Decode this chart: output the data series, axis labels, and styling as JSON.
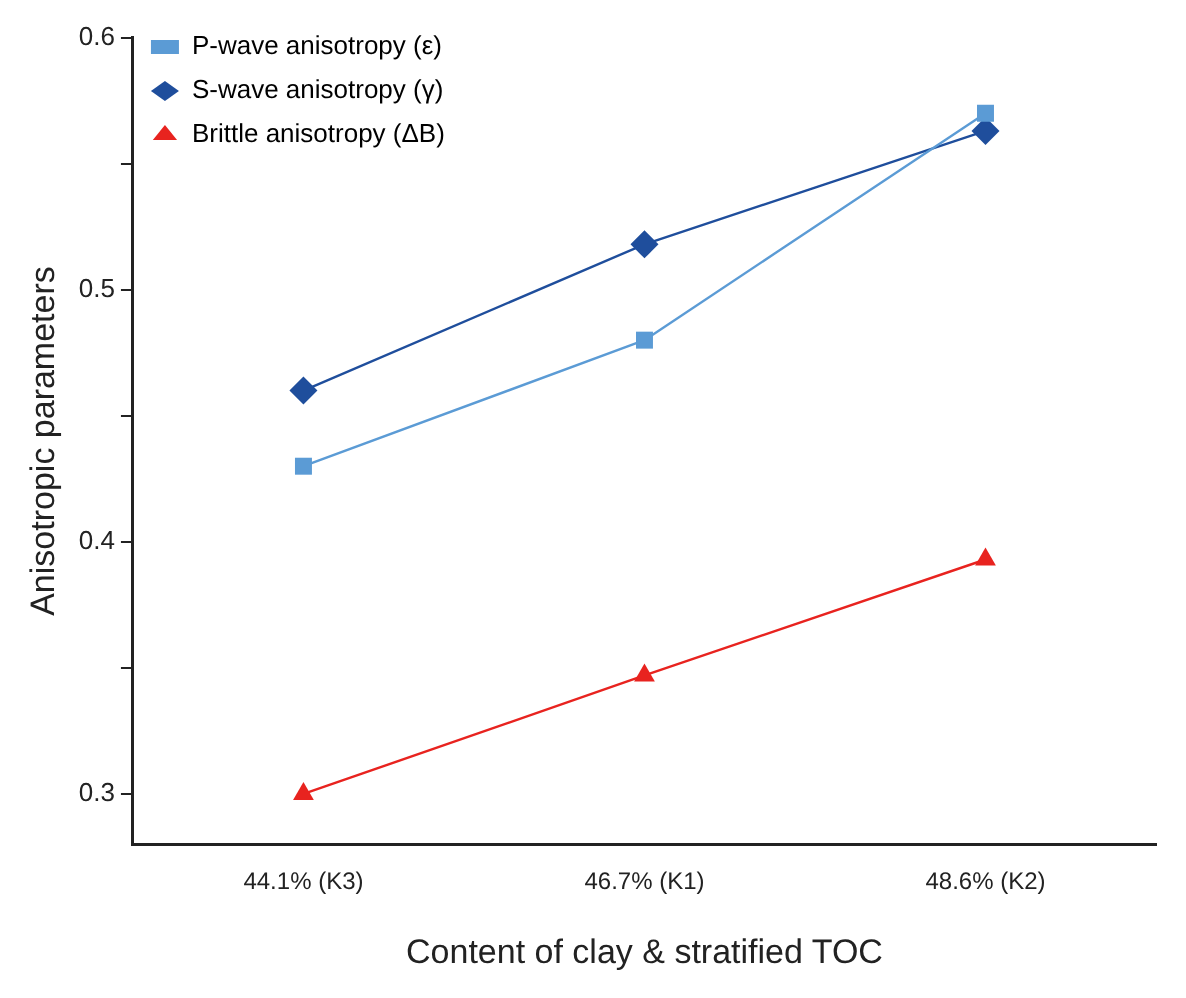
{
  "chart_data": {
    "type": "line",
    "xlabel": "Content of clay & stratified TOC",
    "ylabel": "Anisotropic parameters",
    "categories": [
      "44.1% (K3)",
      "46.7% (K1)",
      "48.6% (K2)"
    ],
    "series": [
      {
        "name": "P-wave anisotropy (ε)",
        "color": "#5b9bd5",
        "marker": "square",
        "values": [
          0.43,
          0.48,
          0.57
        ]
      },
      {
        "name": "S-wave anisotropy (γ)",
        "color": "#1f4e9c",
        "marker": "diamond",
        "values": [
          0.46,
          0.518,
          0.563
        ]
      },
      {
        "name": "Brittle anisotropy (ΔB)",
        "color": "#e8231f",
        "marker": "triangle",
        "values": [
          0.3,
          0.347,
          0.393
        ]
      }
    ],
    "ylim": [
      0.28,
      0.6
    ],
    "yticks": [
      0.3,
      {
        "value": 0.35,
        "label": null
      },
      0.4,
      {
        "value": 0.45,
        "label": null
      },
      0.5,
      {
        "value": 0.55,
        "label": null
      },
      0.6
    ],
    "grid": false,
    "legend": "top left",
    "line_style": "solid"
  }
}
